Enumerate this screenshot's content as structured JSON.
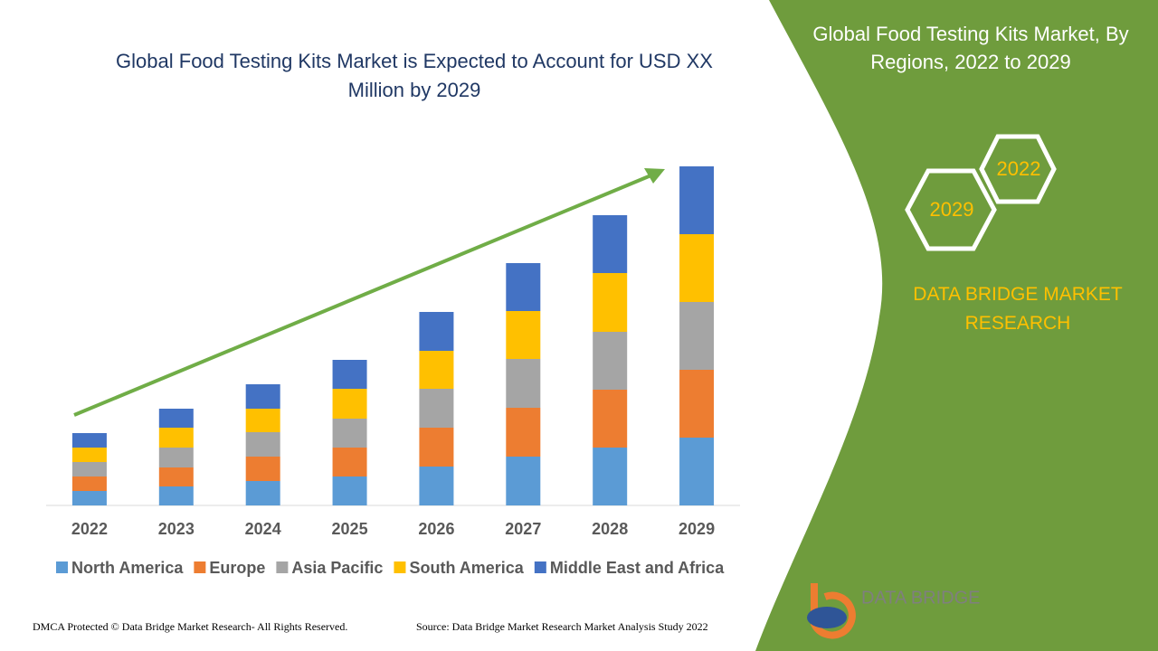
{
  "chart_data": {
    "type": "stacked_bar",
    "title": "Global Food Testing Kits Market is Expected to Account for USD XX Million by 2029",
    "categories": [
      "2022",
      "2023",
      "2024",
      "2025",
      "2026",
      "2027",
      "2028",
      "2029"
    ],
    "series": [
      {
        "name": "North America",
        "color": "#5b9bd5",
        "values": [
          16,
          21,
          27,
          32,
          43,
          54,
          64,
          75
        ]
      },
      {
        "name": "Europe",
        "color": "#ed7d31",
        "values": [
          16,
          21,
          27,
          32,
          43,
          54,
          64,
          75
        ]
      },
      {
        "name": "Asia Pacific",
        "color": "#a5a5a5",
        "values": [
          16,
          22,
          27,
          32,
          43,
          54,
          64,
          75
        ]
      },
      {
        "name": "South America",
        "color": "#ffc000",
        "values": [
          16,
          22,
          26,
          33,
          42,
          53,
          65,
          75
        ]
      },
      {
        "name": "Middle East and Africa",
        "color": "#4472c4",
        "values": [
          16,
          21,
          27,
          32,
          43,
          53,
          64,
          75
        ]
      }
    ],
    "ylim": [
      0,
      400
    ]
  },
  "panel": {
    "title": "Global Food Testing Kits Market, By Regions, 2022 to 2029",
    "hex_start": "2022",
    "hex_end": "2029",
    "brand": "DATA BRIDGE MARKET RESEARCH"
  },
  "logo": {
    "text": "DATA BRIDGE"
  },
  "footer": {
    "left": "DMCA Protected © Data Bridge Market Research- All Rights Reserved.",
    "right": "Source: Data Bridge Market Research Market Analysis Study 2022"
  }
}
